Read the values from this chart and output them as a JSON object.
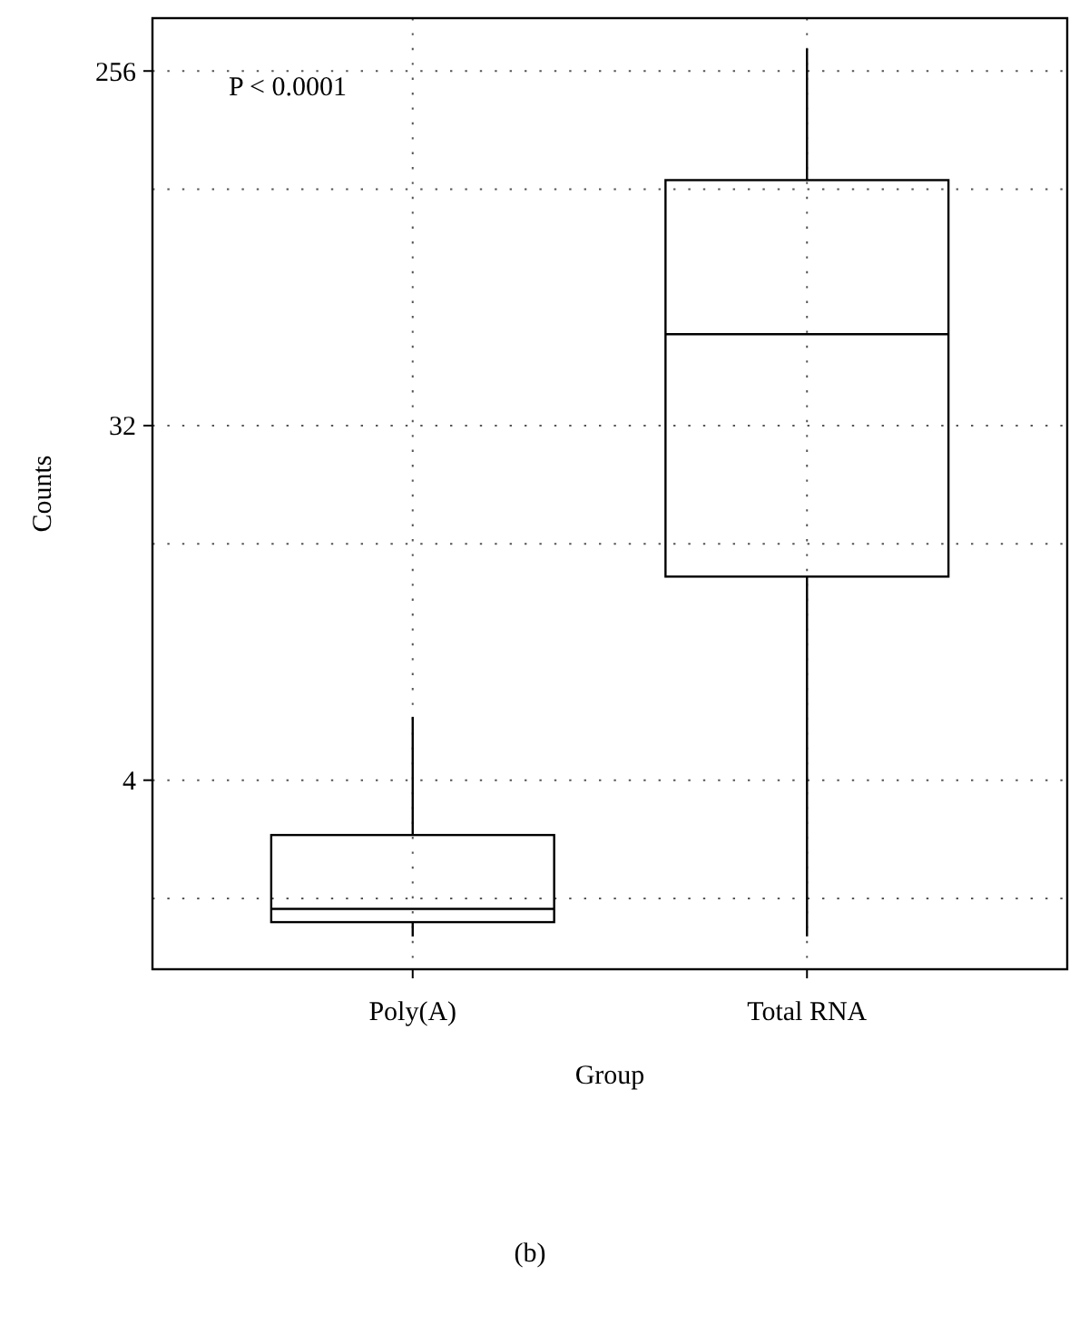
{
  "chart_data": {
    "type": "box",
    "xlabel": "Group",
    "ylabel": "Counts",
    "categories": [
      "Poly(A)",
      "Total RNA"
    ],
    "boxes": [
      {
        "low": 1.6,
        "q1": 1.74,
        "median": 1.88,
        "q3": 2.9,
        "high": 5.8
      },
      {
        "low": 1.6,
        "q1": 13.2,
        "median": 54.7,
        "q3": 135,
        "high": 292
      }
    ],
    "log": true,
    "ylim": [
      1.32,
      349
    ],
    "yticks": [
      {
        "value": 2,
        "label": null
      },
      4,
      {
        "value": 16,
        "label": null
      },
      32,
      {
        "value": 128,
        "label": null
      },
      256
    ],
    "grid": true,
    "color": "#000000",
    "annotations": [
      "P < 0.0001",
      "(b)"
    ]
  }
}
